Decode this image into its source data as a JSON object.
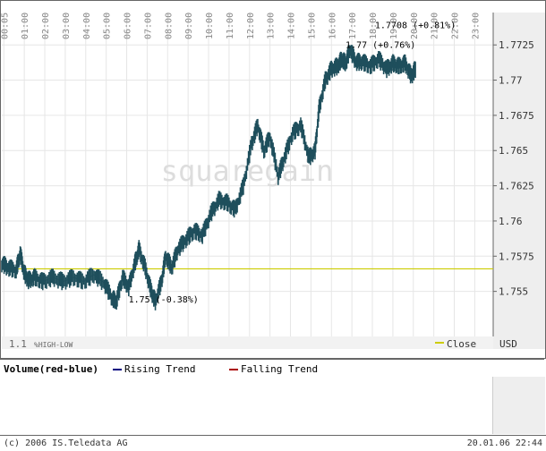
{
  "chart_data": {
    "type": "candlestick",
    "currency": "USD",
    "watermark": "squaregain",
    "x_ticks": [
      "00:05",
      "01:00",
      "02:00",
      "03:00",
      "04:00",
      "05:00",
      "06:00",
      "07:00",
      "08:00",
      "09:00",
      "10:00",
      "11:00",
      "12:00",
      "13:00",
      "14:00",
      "15:00",
      "16:00",
      "17:00",
      "18:00",
      "19:00",
      "20:00",
      "21:00",
      "22:00",
      "23:00"
    ],
    "y_ticks": [
      "1.7725",
      "1.77",
      "1.7675",
      "1.765",
      "1.7625",
      "1.76",
      "1.7575",
      "1.755"
    ],
    "y_tick_values": [
      1.7725,
      1.77,
      1.7675,
      1.765,
      1.7625,
      1.76,
      1.7575,
      1.755
    ],
    "ylim": [
      1.7518,
      1.7748
    ],
    "xlim": [
      0,
      24
    ],
    "reference_line": {
      "label": "Close",
      "value": 1.7566,
      "color": "#cccc00"
    },
    "annotations": [
      {
        "text": "1.7708 (+0.81%)",
        "x": 20.2,
        "y": 1.7737
      },
      {
        "text": "1.77 (+0.76%)",
        "x": 18.5,
        "y": 1.7723
      },
      {
        "text": "1.75 (-0.38%)",
        "x": 7.9,
        "y": 1.7542
      }
    ],
    "range_label": "1.1",
    "range_caption": "%HIGH-LOW",
    "series_path": [
      [
        0.0,
        1.757
      ],
      [
        0.3,
        1.7567
      ],
      [
        0.7,
        1.7565
      ],
      [
        0.9,
        1.7577
      ],
      [
        1.1,
        1.7563
      ],
      [
        1.3,
        1.7558
      ],
      [
        1.6,
        1.756
      ],
      [
        2.0,
        1.7557
      ],
      [
        2.5,
        1.756
      ],
      [
        3.0,
        1.7557
      ],
      [
        3.5,
        1.756
      ],
      [
        4.0,
        1.7557
      ],
      [
        4.5,
        1.7562
      ],
      [
        5.0,
        1.7556
      ],
      [
        5.4,
        1.7545
      ],
      [
        5.6,
        1.7543
      ],
      [
        5.9,
        1.756
      ],
      [
        6.2,
        1.7553
      ],
      [
        6.5,
        1.757
      ],
      [
        6.7,
        1.758
      ],
      [
        7.0,
        1.7567
      ],
      [
        7.3,
        1.755
      ],
      [
        7.5,
        1.7543
      ],
      [
        7.8,
        1.7557
      ],
      [
        8.0,
        1.7575
      ],
      [
        8.3,
        1.7567
      ],
      [
        8.6,
        1.758
      ],
      [
        9.0,
        1.7587
      ],
      [
        9.4,
        1.7593
      ],
      [
        9.8,
        1.759
      ],
      [
        10.2,
        1.7605
      ],
      [
        10.6,
        1.7615
      ],
      [
        11.0,
        1.7613
      ],
      [
        11.4,
        1.7608
      ],
      [
        11.8,
        1.7625
      ],
      [
        12.2,
        1.7655
      ],
      [
        12.5,
        1.7668
      ],
      [
        12.8,
        1.765
      ],
      [
        13.1,
        1.766
      ],
      [
        13.5,
        1.7632
      ],
      [
        13.8,
        1.7645
      ],
      [
        14.2,
        1.7662
      ],
      [
        14.6,
        1.7668
      ],
      [
        15.0,
        1.7645
      ],
      [
        15.3,
        1.765
      ],
      [
        15.5,
        1.768
      ],
      [
        15.8,
        1.77
      ],
      [
        16.1,
        1.7708
      ],
      [
        16.4,
        1.771
      ],
      [
        16.6,
        1.7715
      ],
      [
        16.8,
        1.7712
      ],
      [
        17.0,
        1.7722
      ],
      [
        17.3,
        1.7713
      ],
      [
        17.6,
        1.7713
      ],
      [
        18.0,
        1.771
      ],
      [
        18.4,
        1.7715
      ],
      [
        18.8,
        1.7708
      ],
      [
        19.1,
        1.7712
      ],
      [
        19.4,
        1.771
      ],
      [
        19.7,
        1.7712
      ],
      [
        20.0,
        1.7703
      ],
      [
        20.2,
        1.7708
      ]
    ],
    "volume_label": "Volume(red-blue)",
    "rising_label": "Rising Trend",
    "falling_label": "Falling Trend",
    "rising_color": "#000080",
    "falling_color": "#aa0000"
  },
  "footer": {
    "copyright": "(c) 2006 IS.Teledata AG",
    "timestamp": "20.01.06 22:44"
  }
}
